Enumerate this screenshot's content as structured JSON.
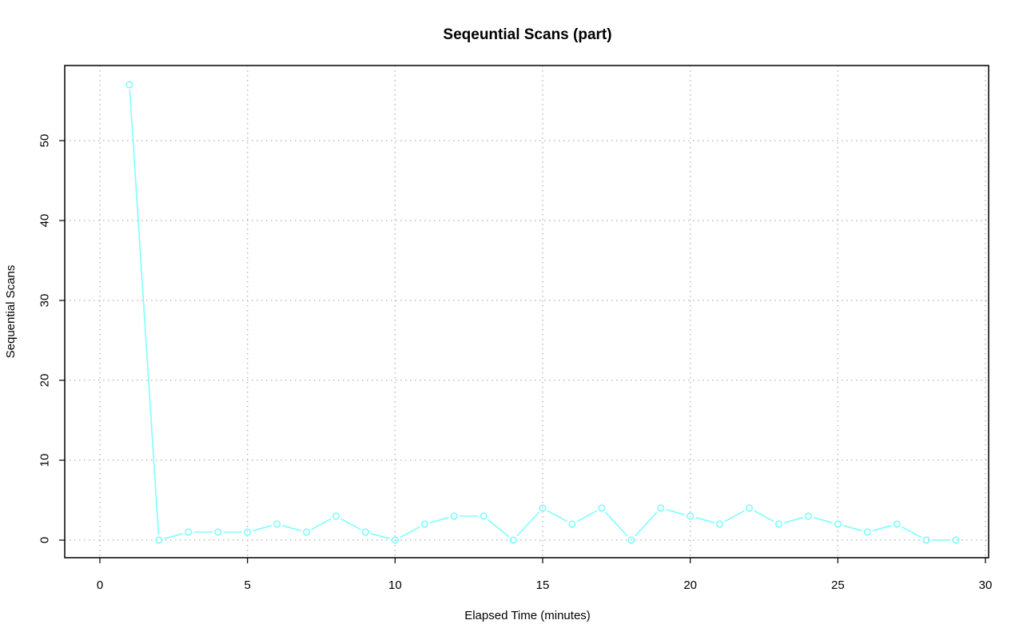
{
  "chart_data": {
    "type": "line",
    "title": "Seqeuntial Scans (part)",
    "xlabel": "Elapsed Time (minutes)",
    "ylabel": "Sequential Scans",
    "xlim": [
      0,
      30
    ],
    "ylim": [
      0,
      57
    ],
    "x_ticks": [
      0,
      5,
      10,
      15,
      20,
      25,
      30
    ],
    "y_ticks": [
      0,
      10,
      20,
      30,
      40,
      50
    ],
    "grid": true,
    "series_color": "#7fffff",
    "series": [
      {
        "x": [
          1,
          2,
          3,
          4,
          5,
          6,
          7,
          8,
          9,
          10,
          11,
          12,
          13,
          14,
          15,
          16,
          17,
          18,
          19,
          20,
          21,
          22,
          23,
          24,
          25,
          26,
          27,
          28,
          29
        ],
        "values": [
          57,
          0,
          1,
          1,
          1,
          2,
          1,
          3,
          1,
          0,
          2,
          3,
          3,
          0,
          4,
          2,
          4,
          0,
          4,
          3,
          2,
          4,
          2,
          3,
          2,
          1,
          2,
          0,
          0
        ]
      }
    ]
  }
}
